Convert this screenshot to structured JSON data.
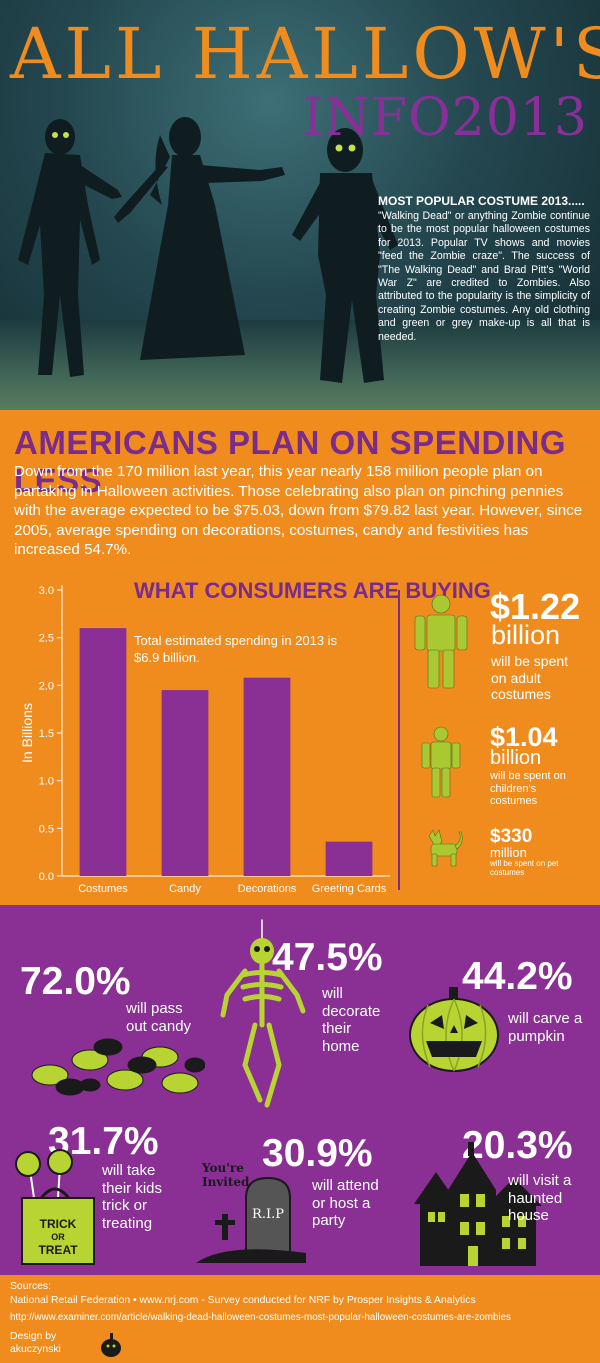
{
  "header": {
    "title": "ALL HALLOW'S",
    "subtitle": "INFO2013",
    "costume_heading": "MOST POPULAR COSTUME 2013.....",
    "costume_text": "\"Walking Dead\" or anything Zombie continue to be the most popular halloween costumes for 2013. Popular TV shows and movies \"feed the Zombie craze\". The success of \"The Walking Dead\" and Brad Pitt's \"World War Z\" are credited to Zombies. Also attributed to the popularity is the simplicity of creating Zombie costumes. Any old clothing and green or grey make-up is all that is needed."
  },
  "spending": {
    "title": "AMERICANS PLAN ON SPENDING LESS",
    "text": "Down from the 170 million last year, this year nearly 158 million people plan on partaking in Halloween activities. Those celebrating also plan on pinching pennies with the average expected to be $75.03, down from $79.82 last year. However, since 2005, average spending on decorations, costumes, candy and festivities has increased 54.7%."
  },
  "chart_data": {
    "type": "bar",
    "title": "WHAT CONSUMERS ARE BUYING",
    "subtitle": "Total estimated spending in 2013 is $6.9 billion.",
    "categories": [
      "Costumes",
      "Candy",
      "Decorations",
      "Greeting Cards"
    ],
    "values": [
      2.6,
      1.95,
      2.08,
      0.36
    ],
    "ylabel": "In Billions",
    "ylim": [
      0,
      3.0
    ],
    "yticks": [
      "0.0",
      "0.5",
      "1.0",
      "1.5",
      "2.0",
      "2.5",
      "3.0"
    ],
    "bar_color": "#8a2f94"
  },
  "costume_spending": {
    "adult": {
      "amount": "$1.22",
      "unit": "billion",
      "desc": "will be spent on adult costumes"
    },
    "children": {
      "amount": "$1.04",
      "unit": "billion",
      "desc": "will be spent on children's costumes"
    },
    "pet": {
      "amount": "$330",
      "unit": "million",
      "desc": "will be spent on pet costumes"
    }
  },
  "activities": [
    {
      "pct": "72.0%",
      "desc": "will pass out candy",
      "icon": "candy-icon"
    },
    {
      "pct": "47.5%",
      "desc": "will decorate their home",
      "icon": "skeleton-icon"
    },
    {
      "pct": "44.2%",
      "desc": "will carve a pumpkin",
      "icon": "pumpkin-icon"
    },
    {
      "pct": "31.7%",
      "desc": "will take their kids trick or treating",
      "icon": "trick-or-treat-bag-icon",
      "bag_text": "TRICK OR TREAT"
    },
    {
      "pct": "30.9%",
      "desc": "will attend or host a party",
      "icon": "tombstone-icon",
      "invite_text": "You're Invited",
      "stone_text": "R.I.P"
    },
    {
      "pct": "20.3%",
      "desc": "will visit a haunted house",
      "icon": "haunted-house-icon"
    }
  ],
  "footer": {
    "sources_label": "Sources:",
    "source1": "National Retail Federation • www.nrj.com - Survey conducted for NRF by Prosper Insights & Analytics",
    "source2": "http://www.examiner.com/article/walking-dead-halloween-costumes-most-popular-halloween-costumes-are-zombies",
    "design_label": "Design by",
    "designer": "akuczynski"
  },
  "colors": {
    "orange": "#f08c1e",
    "purple": "#8a2f94",
    "dark_purple": "#7a2b8c",
    "lime": "#b8d432"
  }
}
